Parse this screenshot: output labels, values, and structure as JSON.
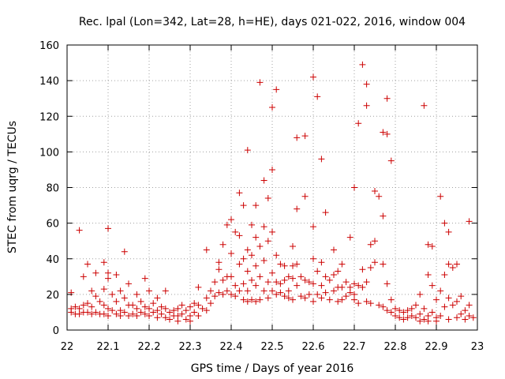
{
  "chart_data": {
    "type": "scatter",
    "title": "Rec. lpal (Lon=342, Lat=28, h=HE), days 021-022, 2016, window 004",
    "xlabel": "GPS time / Days of year 2016",
    "ylabel": "STEC from uqrg / TECUs",
    "xlim": [
      22,
      23
    ],
    "ylim": [
      0,
      160
    ],
    "xticks": [
      "22",
      "22.1",
      "22.2",
      "22.3",
      "22.4",
      "22.5",
      "22.6",
      "22.7",
      "22.8",
      "22.9",
      "23"
    ],
    "yticks": [
      "0",
      "20",
      "40",
      "60",
      "80",
      "100",
      "120",
      "140",
      "160"
    ],
    "grid": true,
    "marker": "+",
    "color": "#cc0000",
    "series": [
      {
        "points": [
          [
            22.01,
            21
          ],
          [
            22.01,
            12
          ],
          [
            22.01,
            10
          ],
          [
            22.02,
            13
          ],
          [
            22.02,
            9
          ],
          [
            22.03,
            56
          ],
          [
            22.03,
            12
          ],
          [
            22.03,
            9
          ],
          [
            22.04,
            30
          ],
          [
            22.04,
            14
          ],
          [
            22.04,
            10
          ],
          [
            22.05,
            37
          ],
          [
            22.05,
            15
          ],
          [
            22.05,
            10
          ],
          [
            22.06,
            22
          ],
          [
            22.06,
            13
          ],
          [
            22.06,
            9
          ],
          [
            22.07,
            32
          ],
          [
            22.07,
            19
          ],
          [
            22.07,
            10
          ],
          [
            22.08,
            16
          ],
          [
            22.08,
            9
          ],
          [
            22.09,
            23
          ],
          [
            22.09,
            38
          ],
          [
            22.09,
            14
          ],
          [
            22.09,
            9
          ],
          [
            22.1,
            57
          ],
          [
            22.1,
            32
          ],
          [
            22.1,
            29
          ],
          [
            22.1,
            12
          ],
          [
            22.1,
            8
          ],
          [
            22.11,
            20
          ],
          [
            22.11,
            11
          ],
          [
            22.12,
            31
          ],
          [
            22.12,
            16
          ],
          [
            22.12,
            9
          ],
          [
            22.13,
            22
          ],
          [
            22.13,
            11
          ],
          [
            22.13,
            8
          ],
          [
            22.14,
            44
          ],
          [
            22.14,
            18
          ],
          [
            22.14,
            10
          ],
          [
            22.15,
            26
          ],
          [
            22.15,
            14
          ],
          [
            22.15,
            8
          ],
          [
            22.16,
            14
          ],
          [
            22.16,
            9
          ],
          [
            22.17,
            20
          ],
          [
            22.17,
            12
          ],
          [
            22.17,
            8
          ],
          [
            22.18,
            16
          ],
          [
            22.18,
            10
          ],
          [
            22.19,
            29
          ],
          [
            22.19,
            13
          ],
          [
            22.19,
            9
          ],
          [
            22.2,
            22
          ],
          [
            22.2,
            12
          ],
          [
            22.2,
            8
          ],
          [
            22.21,
            15
          ],
          [
            22.21,
            10
          ],
          [
            22.22,
            18
          ],
          [
            22.22,
            11
          ],
          [
            22.22,
            7
          ],
          [
            22.23,
            13
          ],
          [
            22.23,
            9
          ],
          [
            22.24,
            22
          ],
          [
            22.24,
            12
          ],
          [
            22.24,
            7
          ],
          [
            22.25,
            10
          ],
          [
            22.25,
            6
          ],
          [
            22.26,
            11
          ],
          [
            22.26,
            8
          ],
          [
            22.27,
            12
          ],
          [
            22.27,
            8
          ],
          [
            22.27,
            5
          ],
          [
            22.28,
            14
          ],
          [
            22.28,
            9
          ],
          [
            22.29,
            11
          ],
          [
            22.29,
            6
          ],
          [
            22.3,
            13
          ],
          [
            22.3,
            8
          ],
          [
            22.3,
            5
          ],
          [
            22.31,
            15
          ],
          [
            22.31,
            10
          ],
          [
            22.32,
            24
          ],
          [
            22.32,
            14
          ],
          [
            22.32,
            8
          ],
          [
            22.33,
            12
          ],
          [
            22.34,
            45
          ],
          [
            22.34,
            18
          ],
          [
            22.34,
            11
          ],
          [
            22.35,
            22
          ],
          [
            22.35,
            15
          ],
          [
            22.36,
            27
          ],
          [
            22.36,
            19
          ],
          [
            22.37,
            38
          ],
          [
            22.37,
            34
          ],
          [
            22.37,
            21
          ],
          [
            22.38,
            48
          ],
          [
            22.38,
            28
          ],
          [
            22.38,
            20
          ],
          [
            22.39,
            59
          ],
          [
            22.39,
            30
          ],
          [
            22.39,
            22
          ],
          [
            22.4,
            62
          ],
          [
            22.4,
            43
          ],
          [
            22.4,
            30
          ],
          [
            22.4,
            20
          ],
          [
            22.41,
            55
          ],
          [
            22.41,
            25
          ],
          [
            22.41,
            19
          ],
          [
            22.42,
            77
          ],
          [
            22.42,
            53
          ],
          [
            22.42,
            37
          ],
          [
            22.42,
            22
          ],
          [
            22.43,
            70
          ],
          [
            22.43,
            40
          ],
          [
            22.43,
            26
          ],
          [
            22.43,
            17
          ],
          [
            22.44,
            101
          ],
          [
            22.44,
            45
          ],
          [
            22.44,
            33
          ],
          [
            22.44,
            22
          ],
          [
            22.44,
            16
          ],
          [
            22.45,
            59
          ],
          [
            22.45,
            42
          ],
          [
            22.45,
            28
          ],
          [
            22.45,
            17
          ],
          [
            22.46,
            70
          ],
          [
            22.46,
            52
          ],
          [
            22.46,
            36
          ],
          [
            22.46,
            25
          ],
          [
            22.46,
            16
          ],
          [
            22.47,
            139
          ],
          [
            22.47,
            47
          ],
          [
            22.47,
            30
          ],
          [
            22.47,
            17
          ],
          [
            22.48,
            84
          ],
          [
            22.48,
            58
          ],
          [
            22.48,
            39
          ],
          [
            22.48,
            22
          ],
          [
            22.49,
            74
          ],
          [
            22.49,
            50
          ],
          [
            22.49,
            27
          ],
          [
            22.49,
            18
          ],
          [
            22.5,
            125
          ],
          [
            22.5,
            90
          ],
          [
            22.5,
            55
          ],
          [
            22.5,
            32
          ],
          [
            22.5,
            22
          ],
          [
            22.51,
            135
          ],
          [
            22.51,
            42
          ],
          [
            22.51,
            27
          ],
          [
            22.51,
            20
          ],
          [
            22.52,
            37
          ],
          [
            22.52,
            26
          ],
          [
            22.52,
            21
          ],
          [
            22.53,
            36
          ],
          [
            22.53,
            28
          ],
          [
            22.53,
            19
          ],
          [
            22.54,
            30
          ],
          [
            22.54,
            22
          ],
          [
            22.54,
            18
          ],
          [
            22.55,
            47
          ],
          [
            22.55,
            36
          ],
          [
            22.55,
            29
          ],
          [
            22.55,
            17
          ],
          [
            22.56,
            68
          ],
          [
            22.56,
            108
          ],
          [
            22.56,
            37
          ],
          [
            22.56,
            25
          ],
          [
            22.57,
            30
          ],
          [
            22.57,
            19
          ],
          [
            22.58,
            75
          ],
          [
            22.58,
            109
          ],
          [
            22.58,
            28
          ],
          [
            22.58,
            18
          ],
          [
            22.59,
            27
          ],
          [
            22.59,
            20
          ],
          [
            22.6,
            142
          ],
          [
            22.6,
            58
          ],
          [
            22.6,
            40
          ],
          [
            22.6,
            26
          ],
          [
            22.6,
            16
          ],
          [
            22.61,
            131
          ],
          [
            22.61,
            33
          ],
          [
            22.61,
            20
          ],
          [
            22.62,
            96
          ],
          [
            22.62,
            38
          ],
          [
            22.62,
            25
          ],
          [
            22.62,
            18
          ],
          [
            22.63,
            66
          ],
          [
            22.63,
            30
          ],
          [
            22.63,
            21
          ],
          [
            22.64,
            28
          ],
          [
            22.64,
            17
          ],
          [
            22.65,
            45
          ],
          [
            22.65,
            31
          ],
          [
            22.65,
            22
          ],
          [
            22.66,
            33
          ],
          [
            22.66,
            24
          ],
          [
            22.66,
            16
          ],
          [
            22.67,
            37
          ],
          [
            22.67,
            24
          ],
          [
            22.67,
            17
          ],
          [
            22.68,
            27
          ],
          [
            22.68,
            19
          ],
          [
            22.69,
            52
          ],
          [
            22.69,
            24
          ],
          [
            22.69,
            21
          ],
          [
            22.7,
            80
          ],
          [
            22.7,
            26
          ],
          [
            22.7,
            20
          ],
          [
            22.7,
            17
          ],
          [
            22.71,
            116
          ],
          [
            22.71,
            25
          ],
          [
            22.71,
            15
          ],
          [
            22.72,
            149
          ],
          [
            22.72,
            34
          ],
          [
            22.72,
            24
          ],
          [
            22.73,
            138
          ],
          [
            22.73,
            126
          ],
          [
            22.73,
            27
          ],
          [
            22.73,
            16
          ],
          [
            22.74,
            48
          ],
          [
            22.74,
            35
          ],
          [
            22.74,
            15
          ],
          [
            22.75,
            78
          ],
          [
            22.75,
            50
          ],
          [
            22.75,
            38
          ],
          [
            22.76,
            75
          ],
          [
            22.76,
            14
          ],
          [
            22.77,
            111
          ],
          [
            22.77,
            64
          ],
          [
            22.77,
            37
          ],
          [
            22.77,
            13
          ],
          [
            22.78,
            110
          ],
          [
            22.78,
            130
          ],
          [
            22.78,
            26
          ],
          [
            22.78,
            11
          ],
          [
            22.79,
            95
          ],
          [
            22.79,
            17
          ],
          [
            22.79,
            10
          ],
          [
            22.8,
            12
          ],
          [
            22.8,
            8
          ],
          [
            22.81,
            11
          ],
          [
            22.81,
            7
          ],
          [
            22.82,
            10
          ],
          [
            22.82,
            6
          ],
          [
            22.83,
            11
          ],
          [
            22.83,
            7
          ],
          [
            22.84,
            12
          ],
          [
            22.84,
            8
          ],
          [
            22.85,
            14
          ],
          [
            22.85,
            7
          ],
          [
            22.86,
            20
          ],
          [
            22.86,
            9
          ],
          [
            22.86,
            5
          ],
          [
            22.87,
            126
          ],
          [
            22.87,
            12
          ],
          [
            22.87,
            6
          ],
          [
            22.88,
            31
          ],
          [
            22.88,
            48
          ],
          [
            22.88,
            8
          ],
          [
            22.88,
            5
          ],
          [
            22.89,
            47
          ],
          [
            22.89,
            25
          ],
          [
            22.89,
            10
          ],
          [
            22.9,
            17
          ],
          [
            22.9,
            7
          ],
          [
            22.9,
            5
          ],
          [
            22.91,
            75
          ],
          [
            22.91,
            22
          ],
          [
            22.91,
            8
          ],
          [
            22.92,
            60
          ],
          [
            22.92,
            31
          ],
          [
            22.92,
            13
          ],
          [
            22.93,
            55
          ],
          [
            22.93,
            37
          ],
          [
            22.93,
            18
          ],
          [
            22.93,
            6
          ],
          [
            22.94,
            35
          ],
          [
            22.94,
            14
          ],
          [
            22.95,
            37
          ],
          [
            22.95,
            16
          ],
          [
            22.95,
            7
          ],
          [
            22.96,
            19
          ],
          [
            22.96,
            9
          ],
          [
            22.97,
            11
          ],
          [
            22.97,
            6
          ],
          [
            22.98,
            61
          ],
          [
            22.98,
            14
          ],
          [
            22.98,
            8
          ],
          [
            22.99,
            7
          ]
        ]
      }
    ]
  }
}
